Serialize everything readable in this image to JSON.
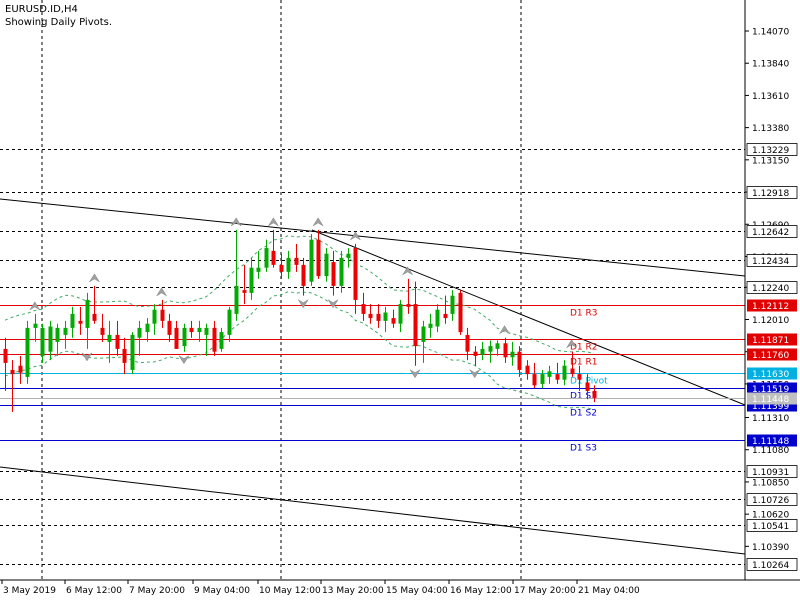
{
  "header": {
    "symbol": "EURUSD.ID,H4",
    "subtitle": "Showing Daily Pivots."
  },
  "chart_data": {
    "type": "candlestick",
    "ylim": [
      1.102,
      1.144
    ],
    "y_ticks": [
      "1.14070",
      "1.13840",
      "1.13610",
      "1.13380",
      "1.13150",
      "1.12920",
      "1.12690",
      "1.12460",
      "1.12240",
      "1.12010",
      "1.11780",
      "1.11550",
      "1.11310",
      "1.11080",
      "1.10850",
      "1.10620",
      "1.10390"
    ],
    "x_labels": [
      "3 May 2019",
      "6 May 12:00",
      "7 May 20:00",
      "9 May 04:00",
      "10 May 12:00",
      "13 May 20:00",
      "15 May 04:00",
      "16 May 12:00",
      "17 May 20:00",
      "21 May 04:00"
    ],
    "pivots": [
      {
        "name": "D1 R3",
        "value": 1.12112,
        "color": "#e00000"
      },
      {
        "name": "D1 R2",
        "value": 1.11871,
        "color": "#e00000"
      },
      {
        "name": "D1 R1",
        "value": 1.1176,
        "color": "#e00000"
      },
      {
        "name": "D1 Pivot",
        "value": 1.1163,
        "color": "#00b0e0"
      },
      {
        "name": "D1 S1",
        "value": 1.11519,
        "color": "#0000cc"
      },
      {
        "name": "D1 S2",
        "value": 1.11399,
        "color": "#0000cc"
      },
      {
        "name": "D1 S3",
        "value": 1.11148,
        "color": "#0000cc"
      }
    ],
    "dashed_levels": [
      "1.13229",
      "1.12918",
      "1.12642",
      "1.12434",
      "1.12240",
      "1.10931",
      "1.10726",
      "1.10541",
      "1.10264"
    ],
    "current_price": "1.11448",
    "colors": {
      "bull": "#00aa00",
      "bear": "#ee0000",
      "envelope": "#44aa66",
      "fractal": "#a0a0a0",
      "trend": "#000000"
    },
    "candles": [
      {
        "o": 1.118,
        "h": 1.1188,
        "l": 1.115,
        "c": 1.117
      },
      {
        "o": 1.1165,
        "h": 1.1172,
        "l": 1.1135,
        "c": 1.1162
      },
      {
        "o": 1.1168,
        "h": 1.1175,
        "l": 1.1155,
        "c": 1.1163
      },
      {
        "o": 1.116,
        "h": 1.12,
        "l": 1.1155,
        "c": 1.1195
      },
      {
        "o": 1.1195,
        "h": 1.1205,
        "l": 1.1185,
        "c": 1.1198
      },
      {
        "o": 1.1175,
        "h": 1.1198,
        "l": 1.117,
        "c": 1.1195
      },
      {
        "o": 1.1178,
        "h": 1.12,
        "l": 1.1172,
        "c": 1.1196
      },
      {
        "o": 1.1185,
        "h": 1.1198,
        "l": 1.1175,
        "c": 1.1195
      },
      {
        "o": 1.119,
        "h": 1.12,
        "l": 1.118,
        "c": 1.1195
      },
      {
        "o": 1.1195,
        "h": 1.121,
        "l": 1.1188,
        "c": 1.1205
      },
      {
        "o": 1.12,
        "h": 1.121,
        "l": 1.119,
        "c": 1.1198
      },
      {
        "o": 1.1195,
        "h": 1.122,
        "l": 1.118,
        "c": 1.1215
      },
      {
        "o": 1.1205,
        "h": 1.1225,
        "l": 1.1198,
        "c": 1.12
      },
      {
        "o": 1.1195,
        "h": 1.1205,
        "l": 1.1185,
        "c": 1.119
      },
      {
        "o": 1.1185,
        "h": 1.12,
        "l": 1.117,
        "c": 1.119
      },
      {
        "o": 1.119,
        "h": 1.12,
        "l": 1.1175,
        "c": 1.118
      },
      {
        "o": 1.118,
        "h": 1.1188,
        "l": 1.1162,
        "c": 1.117
      },
      {
        "o": 1.1165,
        "h": 1.1192,
        "l": 1.1162,
        "c": 1.119
      },
      {
        "o": 1.1188,
        "h": 1.12,
        "l": 1.1175,
        "c": 1.1195
      },
      {
        "o": 1.1192,
        "h": 1.1202,
        "l": 1.1185,
        "c": 1.1198
      },
      {
        "o": 1.1198,
        "h": 1.1212,
        "l": 1.119,
        "c": 1.1208
      },
      {
        "o": 1.1208,
        "h": 1.1215,
        "l": 1.1195,
        "c": 1.12
      },
      {
        "o": 1.12,
        "h": 1.1205,
        "l": 1.1185,
        "c": 1.119
      },
      {
        "o": 1.1195,
        "h": 1.12,
        "l": 1.118,
        "c": 1.118
      },
      {
        "o": 1.1182,
        "h": 1.1198,
        "l": 1.1178,
        "c": 1.1195
      },
      {
        "o": 1.1195,
        "h": 1.12,
        "l": 1.1188,
        "c": 1.1192
      },
      {
        "o": 1.1192,
        "h": 1.12,
        "l": 1.1185,
        "c": 1.1195
      },
      {
        "o": 1.119,
        "h": 1.1198,
        "l": 1.1175,
        "c": 1.1195
      },
      {
        "o": 1.1195,
        "h": 1.12,
        "l": 1.1175,
        "c": 1.1178
      },
      {
        "o": 1.118,
        "h": 1.1195,
        "l": 1.1178,
        "c": 1.1192
      },
      {
        "o": 1.119,
        "h": 1.121,
        "l": 1.1185,
        "c": 1.1208
      },
      {
        "o": 1.1205,
        "h": 1.1265,
        "l": 1.12,
        "c": 1.1225
      },
      {
        "o": 1.1222,
        "h": 1.124,
        "l": 1.1212,
        "c": 1.122
      },
      {
        "o": 1.122,
        "h": 1.1245,
        "l": 1.1215,
        "c": 1.1238
      },
      {
        "o": 1.1235,
        "h": 1.125,
        "l": 1.123,
        "c": 1.1238
      },
      {
        "o": 1.1238,
        "h": 1.1258,
        "l": 1.1235,
        "c": 1.1252
      },
      {
        "o": 1.125,
        "h": 1.1265,
        "l": 1.1238,
        "c": 1.124
      },
      {
        "o": 1.124,
        "h": 1.1248,
        "l": 1.123,
        "c": 1.1235
      },
      {
        "o": 1.1235,
        "h": 1.125,
        "l": 1.123,
        "c": 1.1245
      },
      {
        "o": 1.1245,
        "h": 1.1255,
        "l": 1.1235,
        "c": 1.124
      },
      {
        "o": 1.124,
        "h": 1.1245,
        "l": 1.1218,
        "c": 1.1225
      },
      {
        "o": 1.1228,
        "h": 1.1262,
        "l": 1.1225,
        "c": 1.1258
      },
      {
        "o": 1.1258,
        "h": 1.1265,
        "l": 1.123,
        "c": 1.1232
      },
      {
        "o": 1.1232,
        "h": 1.1252,
        "l": 1.1228,
        "c": 1.1248
      },
      {
        "o": 1.1242,
        "h": 1.125,
        "l": 1.1218,
        "c": 1.1225
      },
      {
        "o": 1.1225,
        "h": 1.125,
        "l": 1.122,
        "c": 1.1245
      },
      {
        "o": 1.1245,
        "h": 1.1252,
        "l": 1.1238,
        "c": 1.1248
      },
      {
        "o": 1.1252,
        "h": 1.1255,
        "l": 1.1205,
        "c": 1.1215
      },
      {
        "o": 1.1212,
        "h": 1.122,
        "l": 1.12,
        "c": 1.1205
      },
      {
        "o": 1.1205,
        "h": 1.1212,
        "l": 1.1198,
        "c": 1.1202
      },
      {
        "o": 1.1205,
        "h": 1.1212,
        "l": 1.1195,
        "c": 1.12
      },
      {
        "o": 1.12,
        "h": 1.121,
        "l": 1.1192,
        "c": 1.1206
      },
      {
        "o": 1.1202,
        "h": 1.1208,
        "l": 1.1195,
        "c": 1.1198
      },
      {
        "o": 1.1198,
        "h": 1.1215,
        "l": 1.1192,
        "c": 1.1212
      },
      {
        "o": 1.1212,
        "h": 1.123,
        "l": 1.1205,
        "c": 1.121
      },
      {
        "o": 1.1212,
        "h": 1.1228,
        "l": 1.1168,
        "c": 1.1182
      },
      {
        "o": 1.1185,
        "h": 1.12,
        "l": 1.117,
        "c": 1.1196
      },
      {
        "o": 1.1195,
        "h": 1.1205,
        "l": 1.1188,
        "c": 1.1198
      },
      {
        "o": 1.1196,
        "h": 1.1212,
        "l": 1.1192,
        "c": 1.1208
      },
      {
        "o": 1.1205,
        "h": 1.1218,
        "l": 1.1198,
        "c": 1.1202
      },
      {
        "o": 1.1205,
        "h": 1.1222,
        "l": 1.12,
        "c": 1.1218
      },
      {
        "o": 1.122,
        "h": 1.1222,
        "l": 1.119,
        "c": 1.1192
      },
      {
        "o": 1.119,
        "h": 1.1195,
        "l": 1.1172,
        "c": 1.1178
      },
      {
        "o": 1.1178,
        "h": 1.1182,
        "l": 1.1168,
        "c": 1.1175
      },
      {
        "o": 1.1176,
        "h": 1.1185,
        "l": 1.1172,
        "c": 1.118
      },
      {
        "o": 1.1178,
        "h": 1.1186,
        "l": 1.117,
        "c": 1.1182
      },
      {
        "o": 1.118,
        "h": 1.1186,
        "l": 1.1175,
        "c": 1.1184
      },
      {
        "o": 1.1184,
        "h": 1.1188,
        "l": 1.117,
        "c": 1.1174
      },
      {
        "o": 1.1174,
        "h": 1.1185,
        "l": 1.1168,
        "c": 1.1178
      },
      {
        "o": 1.1178,
        "h": 1.1182,
        "l": 1.116,
        "c": 1.1165
      },
      {
        "o": 1.1168,
        "h": 1.1172,
        "l": 1.1158,
        "c": 1.1162
      },
      {
        "o": 1.1162,
        "h": 1.117,
        "l": 1.1152,
        "c": 1.1154
      },
      {
        "o": 1.1155,
        "h": 1.1165,
        "l": 1.1152,
        "c": 1.1162
      },
      {
        "o": 1.116,
        "h": 1.1168,
        "l": 1.1155,
        "c": 1.1164
      },
      {
        "o": 1.1162,
        "h": 1.117,
        "l": 1.1155,
        "c": 1.1158
      },
      {
        "o": 1.1158,
        "h": 1.1172,
        "l": 1.1154,
        "c": 1.1168
      },
      {
        "o": 1.1166,
        "h": 1.1178,
        "l": 1.116,
        "c": 1.1162
      },
      {
        "o": 1.1162,
        "h": 1.1168,
        "l": 1.115,
        "c": 1.1158
      },
      {
        "o": 1.1156,
        "h": 1.1162,
        "l": 1.1144,
        "c": 1.115
      },
      {
        "o": 1.115,
        "h": 1.1154,
        "l": 1.1142,
        "c": 1.1145
      }
    ]
  }
}
